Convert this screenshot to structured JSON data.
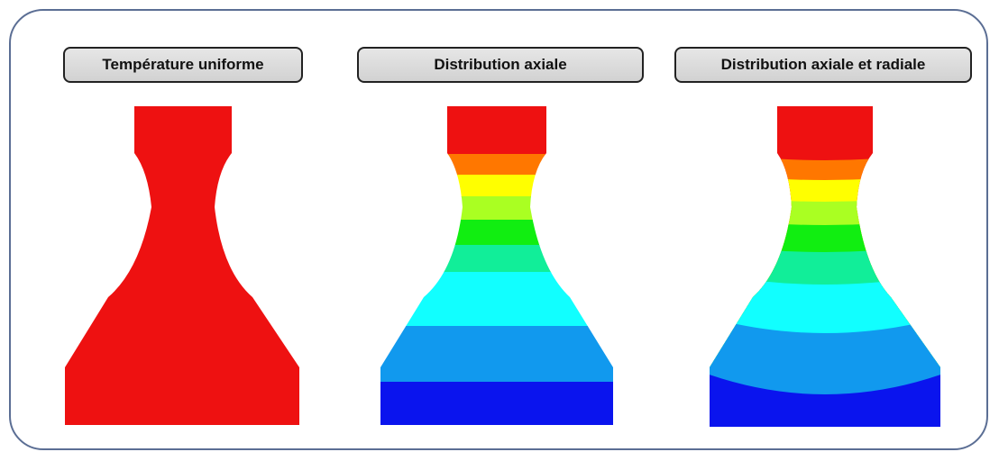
{
  "panels": [
    {
      "title": "Température uniforme",
      "mode": "uniform"
    },
    {
      "title": "Distribution axiale",
      "mode": "axial"
    },
    {
      "title": "Distribution axiale et radiale",
      "mode": "axial-radial"
    }
  ],
  "colors": {
    "frame_border": "#5b6e94",
    "contour_scale": [
      "#ee1111",
      "#ff7700",
      "#ffff00",
      "#aaff22",
      "#11ee11",
      "#11ee99",
      "#11ffff",
      "#1199ee",
      "#0a14ee"
    ]
  }
}
